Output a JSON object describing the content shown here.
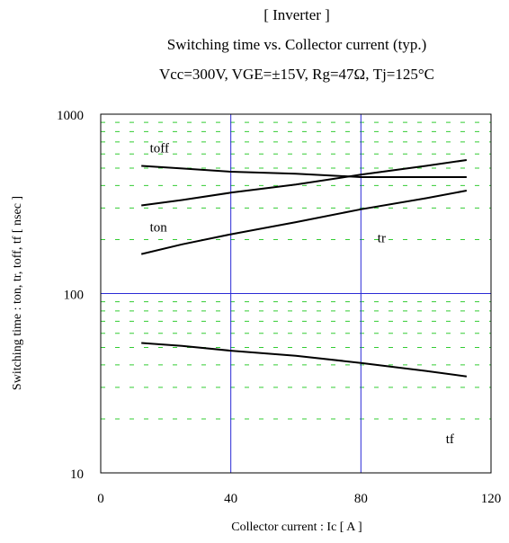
{
  "chart_data": {
    "type": "line",
    "title_lines": [
      "[ Inverter ]",
      "Switching time  vs.  Collector current  (typ.)",
      "Vcc=300V, VGE=±15V, Rg=47Ω, Tj=125°C"
    ],
    "xlabel": "Collector current  :  Ic  [ A ]",
    "ylabel": "Switching time  :  ton, tr, toff, tf  [ nsec ]",
    "x_scale": "linear",
    "y_scale": "log",
    "xlim": [
      0,
      120
    ],
    "ylim": [
      10,
      1000
    ],
    "x_ticks": [
      0,
      40,
      80,
      120
    ],
    "y_ticks": [
      10,
      100,
      1000
    ],
    "major_grid_color": "#2b2bd6",
    "minor_grid_color": "#33cc33",
    "series": [
      {
        "name": "toff",
        "x": [
          12.5,
          25,
          40,
          60,
          80,
          100,
          112.5
        ],
        "y": [
          515,
          498,
          478,
          466,
          446,
          446,
          446
        ]
      },
      {
        "name": "ton",
        "x": [
          12.5,
          25,
          40,
          60,
          80,
          100,
          112.5
        ],
        "y": [
          310,
          332,
          365,
          405,
          460,
          515,
          555
        ]
      },
      {
        "name": "tr",
        "x": [
          12.5,
          25,
          40,
          60,
          80,
          100,
          112.5
        ],
        "y": [
          166,
          188,
          214,
          250,
          295,
          340,
          375
        ]
      },
      {
        "name": "tf",
        "x": [
          12.5,
          25,
          40,
          60,
          80,
          100,
          112.5
        ],
        "y": [
          53,
          51,
          48,
          45,
          41,
          37,
          34.5
        ]
      }
    ],
    "series_labels": [
      {
        "text": "toff",
        "x": 14,
        "y": 650
      },
      {
        "text": "ton",
        "x": 14,
        "y": 235
      },
      {
        "text": "tr",
        "x": 84,
        "y": 205
      },
      {
        "text": "tf",
        "x": 105,
        "y": 15.5
      }
    ]
  }
}
